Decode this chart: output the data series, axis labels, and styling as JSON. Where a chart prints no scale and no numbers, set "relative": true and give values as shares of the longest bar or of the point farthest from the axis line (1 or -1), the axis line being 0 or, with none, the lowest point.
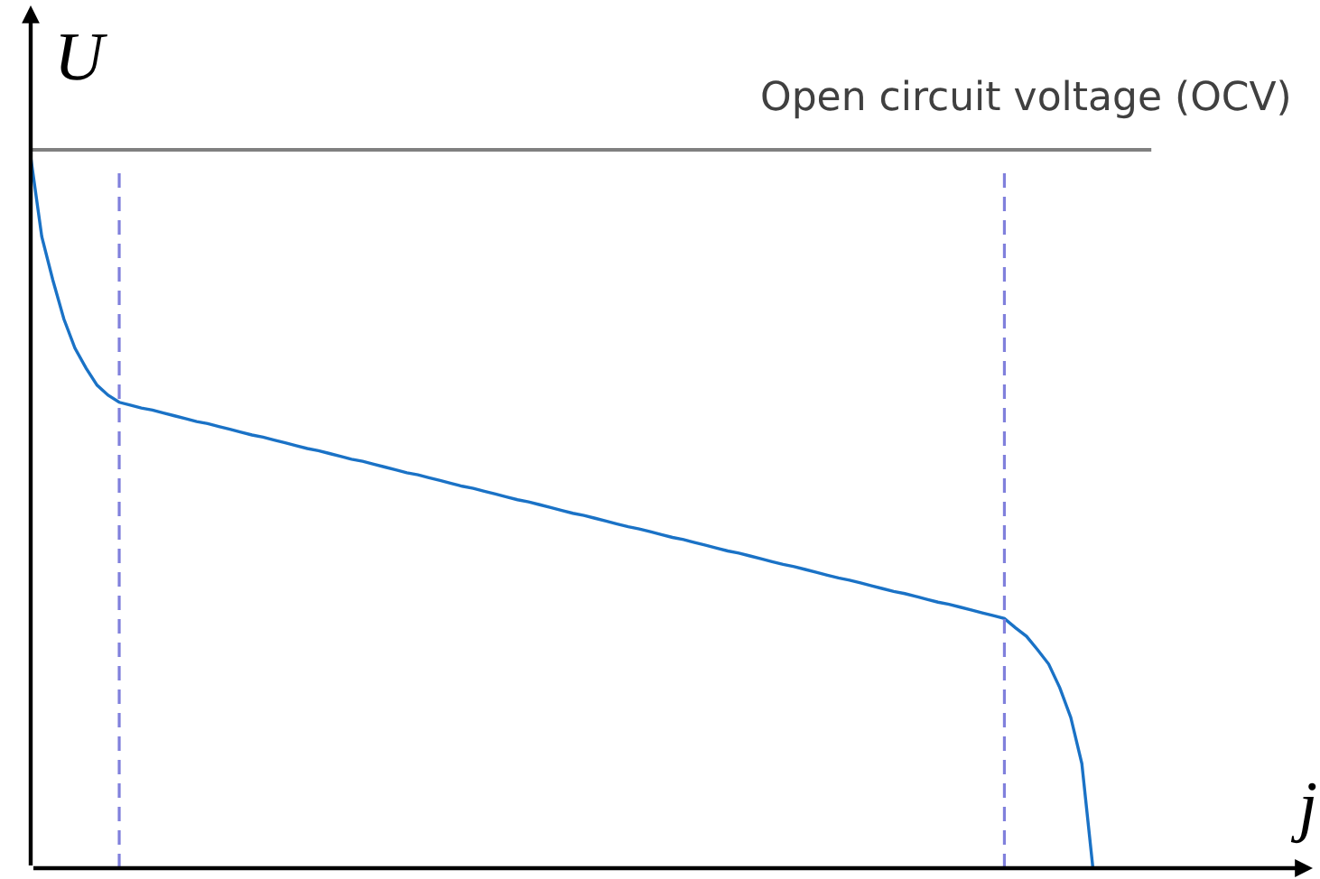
{
  "chart_data": {
    "type": "line",
    "relative": true,
    "xlabel": "j",
    "ylabel": "U",
    "categories": [
      null,
      null,
      null,
      null,
      null,
      null,
      null,
      null,
      null,
      null,
      null,
      null,
      null,
      null,
      null,
      null,
      null,
      null,
      null,
      null,
      null,
      null,
      null,
      null,
      null,
      null,
      null,
      null,
      null,
      null,
      null,
      null,
      null,
      null,
      null,
      null,
      null,
      null,
      null,
      null,
      null,
      null,
      null,
      null,
      null,
      null,
      null,
      null,
      null,
      null,
      null,
      null,
      null,
      null,
      null,
      null,
      null,
      null,
      null,
      null,
      null,
      null,
      null,
      null,
      null,
      null,
      null,
      null,
      null,
      null,
      null,
      null,
      null,
      null,
      null,
      null,
      null,
      null,
      null,
      null,
      null,
      null,
      null,
      null,
      null,
      null,
      null,
      null,
      null,
      null,
      null,
      null,
      null,
      null,
      null,
      null,
      null
    ],
    "series": [
      {
        "color": "#1a72c6",
        "values": [
          1.0,
          0.888,
          0.827,
          0.772,
          0.731,
          0.703,
          0.679,
          0.665,
          0.655,
          0.651,
          0.647,
          0.644,
          0.64,
          0.636,
          0.632,
          0.628,
          0.625,
          0.621,
          0.617,
          0.613,
          0.609,
          0.606,
          0.602,
          0.598,
          0.594,
          0.59,
          0.587,
          0.583,
          0.579,
          0.575,
          0.572,
          0.568,
          0.564,
          0.56,
          0.556,
          0.553,
          0.549,
          0.545,
          0.541,
          0.537,
          0.534,
          0.53,
          0.526,
          0.522,
          0.518,
          0.515,
          0.511,
          0.507,
          0.503,
          0.499,
          0.496,
          0.492,
          0.488,
          0.484,
          0.48,
          0.477,
          0.473,
          0.469,
          0.465,
          0.462,
          0.458,
          0.454,
          0.45,
          0.446,
          0.443,
          0.439,
          0.435,
          0.431,
          0.427,
          0.424,
          0.42,
          0.416,
          0.412,
          0.408,
          0.405,
          0.401,
          0.397,
          0.393,
          0.389,
          0.386,
          0.382,
          0.378,
          0.374,
          0.371,
          0.367,
          0.363,
          0.359,
          0.355,
          0.351,
          0.338,
          0.326,
          0.307,
          0.287,
          0.254,
          0.212,
          0.147,
          0
        ]
      }
    ],
    "ref_lines": [
      {
        "axis": "y",
        "value": 1.01,
        "label": "Open circuit voltage (OCV)",
        "color": "#808080",
        "line_style": "solid"
      }
    ]
  }
}
